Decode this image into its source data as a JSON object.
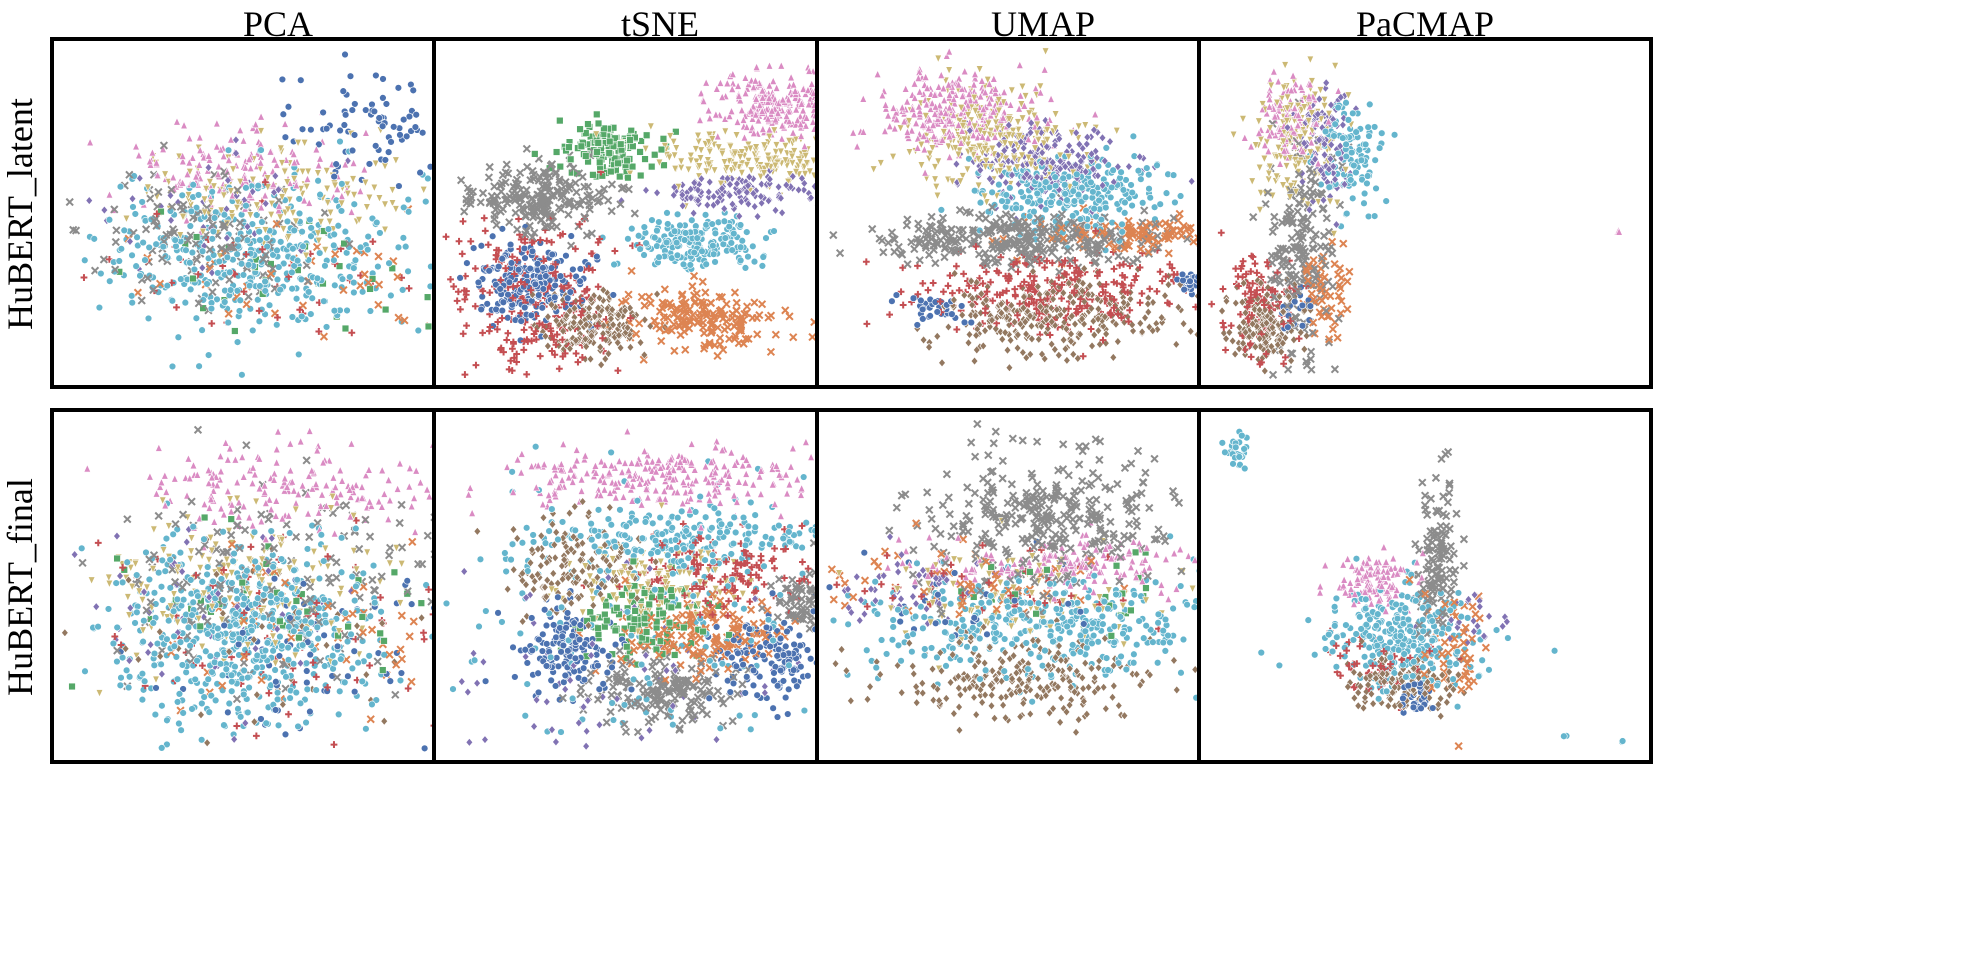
{
  "figure": {
    "columns": [
      "PCA",
      "tSNE",
      "UMAP",
      "PaCMAP"
    ],
    "rows": [
      "HuBERT_latent",
      "HuBERT_final"
    ]
  },
  "legend_palette": [
    {
      "color": "#4c72b0",
      "marker": "circle"
    },
    {
      "color": "#dd8452",
      "marker": "x"
    },
    {
      "color": "#55a868",
      "marker": "square"
    },
    {
      "color": "#c44e52",
      "marker": "plus"
    },
    {
      "color": "#8172b3",
      "marker": "diamond"
    },
    {
      "color": "#937860",
      "marker": "diamond"
    },
    {
      "color": "#da8bc3",
      "marker": "triangle-up"
    },
    {
      "color": "#8c8c8c",
      "marker": "x"
    },
    {
      "color": "#ccb974",
      "marker": "triangle-down"
    },
    {
      "color": "#64b5cd",
      "marker": "circle"
    }
  ],
  "chart_data": [
    {
      "type": "scatter",
      "row": "HuBERT_latent",
      "column": "PCA",
      "xlabel": "",
      "ylabel": "",
      "xlim": [
        0,
        100
      ],
      "ylim": [
        0,
        100
      ],
      "grid": false,
      "legend": "none",
      "clusters": [
        {
          "class": 9,
          "cx": 46,
          "cy": 37,
          "sx": 18,
          "sy": 12,
          "n": 420
        },
        {
          "class": 7,
          "cx": 30,
          "cy": 43,
          "sx": 14,
          "sy": 10,
          "n": 120
        },
        {
          "class": 8,
          "cx": 48,
          "cy": 55,
          "sx": 17,
          "sy": 8,
          "n": 140
        },
        {
          "class": 6,
          "cx": 42,
          "cy": 64,
          "sx": 13,
          "sy": 7,
          "n": 150
        },
        {
          "class": 0,
          "cx": 70,
          "cy": 77,
          "sx": 8,
          "sy": 9,
          "n": 75
        },
        {
          "class": 4,
          "cx": 37,
          "cy": 50,
          "sx": 17,
          "sy": 10,
          "n": 40
        },
        {
          "class": 3,
          "cx": 52,
          "cy": 30,
          "sx": 20,
          "sy": 9,
          "n": 45
        },
        {
          "class": 2,
          "cx": 50,
          "cy": 31,
          "sx": 21,
          "sy": 9,
          "n": 30
        },
        {
          "class": 1,
          "cx": 55,
          "cy": 32,
          "sx": 22,
          "sy": 10,
          "n": 40
        }
      ]
    },
    {
      "type": "scatter",
      "row": "HuBERT_latent",
      "column": "tSNE",
      "xlabel": "",
      "ylabel": "",
      "xlim": [
        0,
        100
      ],
      "ylim": [
        0,
        100
      ],
      "grid": false,
      "legend": "none",
      "clusters": [
        {
          "class": 6,
          "cx": 78,
          "cy": 84,
          "sx": 8,
          "sy": 5,
          "n": 260
        },
        {
          "class": 8,
          "cx": 72,
          "cy": 67,
          "sx": 12,
          "sy": 4,
          "n": 200
        },
        {
          "class": 4,
          "cx": 67,
          "cy": 56,
          "sx": 10,
          "sy": 3,
          "n": 130
        },
        {
          "class": 2,
          "cx": 38,
          "cy": 69,
          "sx": 5,
          "sy": 4,
          "n": 150
        },
        {
          "class": 9,
          "cx": 58,
          "cy": 40,
          "sx": 7,
          "sy": 4,
          "n": 200
        },
        {
          "class": 0,
          "cx": 19,
          "cy": 28,
          "sx": 6,
          "sy": 6,
          "n": 240
        },
        {
          "class": 5,
          "cx": 35,
          "cy": 15,
          "sx": 6,
          "sy": 5,
          "n": 200
        },
        {
          "class": 3,
          "cx": 20,
          "cy": 23,
          "sx": 11,
          "sy": 13,
          "n": 250
        },
        {
          "class": 7,
          "cx": 22,
          "cy": 55,
          "sx": 8,
          "sy": 5,
          "n": 220
        },
        {
          "class": 1,
          "cx": 60,
          "cy": 17,
          "sx": 9,
          "sy": 5,
          "n": 170
        },
        {
          "class": 0,
          "cx": 92,
          "cy": 28,
          "sx": 1.2,
          "sy": 1.0,
          "n": 30
        }
      ]
    },
    {
      "type": "scatter",
      "row": "HuBERT_latent",
      "column": "UMAP",
      "xlabel": "",
      "ylabel": "",
      "xlim": [
        0,
        100
      ],
      "ylim": [
        0,
        100
      ],
      "grid": false,
      "legend": "none",
      "clusters": [
        {
          "class": 6,
          "cx": 30,
          "cy": 82,
          "sx": 9,
          "sy": 6,
          "n": 260
        },
        {
          "class": 8,
          "cx": 38,
          "cy": 72,
          "sx": 10,
          "sy": 8,
          "n": 260
        },
        {
          "class": 4,
          "cx": 52,
          "cy": 65,
          "sx": 9,
          "sy": 6,
          "n": 200
        },
        {
          "class": 9,
          "cx": 58,
          "cy": 56,
          "sx": 11,
          "sy": 6,
          "n": 250
        },
        {
          "class": 7,
          "cx": 45,
          "cy": 42,
          "sx": 17,
          "sy": 4,
          "n": 300
        },
        {
          "class": 1,
          "cx": 70,
          "cy": 44,
          "sx": 12,
          "sy": 3,
          "n": 100
        },
        {
          "class": 3,
          "cx": 52,
          "cy": 26,
          "sx": 16,
          "sy": 6,
          "n": 260
        },
        {
          "class": 5,
          "cx": 52,
          "cy": 18,
          "sx": 14,
          "sy": 6,
          "n": 300
        },
        {
          "class": 0,
          "cx": 88,
          "cy": 29,
          "sx": 3,
          "sy": 1.3,
          "n": 100
        },
        {
          "class": 0,
          "cx": 25,
          "cy": 20,
          "sx": 4,
          "sy": 3,
          "n": 35
        }
      ]
    },
    {
      "type": "scatter",
      "row": "HuBERT_latent",
      "column": "PaCMAP",
      "xlabel": "",
      "ylabel": "",
      "xlim": [
        0,
        100
      ],
      "ylim": [
        0,
        100
      ],
      "grid": false,
      "legend": "none",
      "clusters": [
        {
          "class": 6,
          "cx": 18,
          "cy": 80,
          "sx": 4,
          "sy": 7,
          "n": 120
        },
        {
          "class": 8,
          "cx": 20,
          "cy": 72,
          "sx": 5,
          "sy": 9,
          "n": 160
        },
        {
          "class": 4,
          "cx": 27,
          "cy": 72,
          "sx": 3,
          "sy": 9,
          "n": 100
        },
        {
          "class": 9,
          "cx": 33,
          "cy": 68,
          "sx": 4,
          "sy": 8,
          "n": 110
        },
        {
          "class": 7,
          "cx": 21,
          "cy": 35,
          "sx": 4,
          "sy": 17,
          "n": 200
        },
        {
          "class": 3,
          "cx": 11,
          "cy": 22,
          "sx": 4,
          "sy": 9,
          "n": 100
        },
        {
          "class": 5,
          "cx": 12,
          "cy": 15,
          "sx": 4,
          "sy": 6,
          "n": 170
        },
        {
          "class": 1,
          "cx": 27,
          "cy": 25,
          "sx": 3,
          "sy": 8,
          "n": 50
        },
        {
          "class": 0,
          "cx": 20,
          "cy": 20,
          "sx": 2,
          "sy": 3,
          "n": 20
        },
        {
          "class": 6,
          "cx": 95,
          "cy": 44,
          "sx": 0.2,
          "sy": 0.2,
          "n": 3
        }
      ]
    },
    {
      "type": "scatter",
      "row": "HuBERT_final",
      "column": "PCA",
      "xlabel": "",
      "ylabel": "",
      "xlim": [
        0,
        100
      ],
      "ylim": [
        0,
        100
      ],
      "grid": false,
      "legend": "none",
      "clusters": [
        {
          "class": 9,
          "cx": 42,
          "cy": 35,
          "sx": 15,
          "sy": 15,
          "n": 550
        },
        {
          "class": 8,
          "cx": 40,
          "cy": 50,
          "sx": 18,
          "sy": 12,
          "n": 150
        },
        {
          "class": 6,
          "cx": 52,
          "cy": 80,
          "sx": 18,
          "sy": 7,
          "n": 180
        },
        {
          "class": 7,
          "cx": 48,
          "cy": 52,
          "sx": 22,
          "sy": 17,
          "n": 150
        },
        {
          "class": 0,
          "cx": 60,
          "cy": 30,
          "sx": 20,
          "sy": 14,
          "n": 70
        },
        {
          "class": 3,
          "cx": 55,
          "cy": 35,
          "sx": 24,
          "sy": 16,
          "n": 70
        },
        {
          "class": 1,
          "cx": 60,
          "cy": 32,
          "sx": 22,
          "sy": 14,
          "n": 60
        },
        {
          "class": 4,
          "cx": 32,
          "cy": 40,
          "sx": 20,
          "sy": 15,
          "n": 60
        },
        {
          "class": 2,
          "cx": 45,
          "cy": 45,
          "sx": 22,
          "sy": 15,
          "n": 40
        },
        {
          "class": 5,
          "cx": 45,
          "cy": 35,
          "sx": 18,
          "sy": 14,
          "n": 50
        }
      ]
    },
    {
      "type": "scatter",
      "row": "HuBERT_final",
      "column": "tSNE",
      "xlabel": "",
      "ylabel": "",
      "xlim": [
        0,
        100
      ],
      "ylim": [
        0,
        100
      ],
      "grid": false,
      "legend": "none",
      "clusters": [
        {
          "class": 6,
          "cx": 50,
          "cy": 83,
          "sx": 17,
          "sy": 5,
          "n": 260
        },
        {
          "class": 9,
          "cx": 55,
          "cy": 65,
          "sx": 18,
          "sy": 5,
          "n": 220
        },
        {
          "class": 5,
          "cx": 30,
          "cy": 55,
          "sx": 8,
          "sy": 7,
          "n": 140
        },
        {
          "class": 3,
          "cx": 65,
          "cy": 55,
          "sx": 12,
          "sy": 6,
          "n": 140
        },
        {
          "class": 8,
          "cx": 48,
          "cy": 52,
          "sx": 10,
          "sy": 6,
          "n": 120
        },
        {
          "class": 2,
          "cx": 45,
          "cy": 40,
          "sx": 8,
          "sy": 6,
          "n": 120
        },
        {
          "class": 0,
          "cx": 28,
          "cy": 30,
          "sx": 6,
          "sy": 7,
          "n": 140
        },
        {
          "class": 0,
          "cx": 76,
          "cy": 28,
          "sx": 7,
          "sy": 7,
          "n": 150
        },
        {
          "class": 1,
          "cx": 60,
          "cy": 35,
          "sx": 10,
          "sy": 6,
          "n": 140
        },
        {
          "class": 7,
          "cx": 50,
          "cy": 18,
          "sx": 9,
          "sy": 5,
          "n": 170
        },
        {
          "class": 7,
          "cx": 85,
          "cy": 45,
          "sx": 5,
          "sy": 6,
          "n": 90
        },
        {
          "class": 4,
          "cx": 40,
          "cy": 25,
          "sx": 22,
          "sy": 14,
          "n": 70
        },
        {
          "class": 9,
          "cx": 50,
          "cy": 40,
          "sx": 28,
          "sy": 22,
          "n": 160
        }
      ]
    },
    {
      "type": "scatter",
      "row": "HuBERT_final",
      "column": "UMAP",
      "xlabel": "",
      "ylabel": "",
      "xlim": [
        0,
        100
      ],
      "ylim": [
        0,
        100
      ],
      "grid": false,
      "legend": "none",
      "clusters": [
        {
          "class": 7,
          "cx": 52,
          "cy": 70,
          "sx": 14,
          "sy": 11,
          "n": 320
        },
        {
          "class": 6,
          "cx": 55,
          "cy": 56,
          "sx": 18,
          "sy": 4,
          "n": 160
        },
        {
          "class": 9,
          "cx": 50,
          "cy": 38,
          "sx": 22,
          "sy": 8,
          "n": 380
        },
        {
          "class": 5,
          "cx": 45,
          "cy": 22,
          "sx": 14,
          "sy": 6,
          "n": 240
        },
        {
          "class": 8,
          "cx": 40,
          "cy": 46,
          "sx": 22,
          "sy": 8,
          "n": 90
        },
        {
          "class": 1,
          "cx": 30,
          "cy": 52,
          "sx": 18,
          "sy": 6,
          "n": 60
        },
        {
          "class": 4,
          "cx": 20,
          "cy": 50,
          "sx": 8,
          "sy": 6,
          "n": 50
        },
        {
          "class": 3,
          "cx": 40,
          "cy": 50,
          "sx": 22,
          "sy": 6,
          "n": 40
        },
        {
          "class": 0,
          "cx": 30,
          "cy": 45,
          "sx": 12,
          "sy": 8,
          "n": 30
        },
        {
          "class": 2,
          "cx": 60,
          "cy": 48,
          "sx": 15,
          "sy": 6,
          "n": 25
        }
      ]
    },
    {
      "type": "scatter",
      "row": "HuBERT_final",
      "column": "PaCMAP",
      "xlabel": "",
      "ylabel": "",
      "xlim": [
        0,
        100
      ],
      "ylim": [
        0,
        100
      ],
      "grid": false,
      "legend": "none",
      "clusters": [
        {
          "class": 6,
          "cx": 38,
          "cy": 52,
          "sx": 5,
          "sy": 4,
          "n": 110
        },
        {
          "class": 7,
          "cx": 53,
          "cy": 58,
          "sx": 2.5,
          "sy": 12,
          "n": 120
        },
        {
          "class": 9,
          "cx": 45,
          "cy": 35,
          "sx": 9,
          "sy": 8,
          "n": 280
        },
        {
          "class": 5,
          "cx": 44,
          "cy": 20,
          "sx": 6,
          "sy": 4,
          "n": 130
        },
        {
          "class": 0,
          "cx": 48,
          "cy": 16,
          "sx": 2,
          "sy": 3,
          "n": 30
        },
        {
          "class": 1,
          "cx": 56,
          "cy": 30,
          "sx": 4,
          "sy": 9,
          "n": 50
        },
        {
          "class": 3,
          "cx": 38,
          "cy": 25,
          "sx": 7,
          "sy": 5,
          "n": 40
        },
        {
          "class": 4,
          "cx": 60,
          "cy": 40,
          "sx": 6,
          "sy": 4,
          "n": 25
        },
        {
          "class": 9,
          "cx": 6,
          "cy": 91,
          "sx": 1.5,
          "sy": 3,
          "n": 30
        },
        {
          "class": 9,
          "cx": 83,
          "cy": 4,
          "sx": 0.3,
          "sy": 0.3,
          "n": 2
        },
        {
          "class": 9,
          "cx": 96,
          "cy": 3,
          "sx": 0.3,
          "sy": 0.3,
          "n": 2
        }
      ]
    }
  ]
}
